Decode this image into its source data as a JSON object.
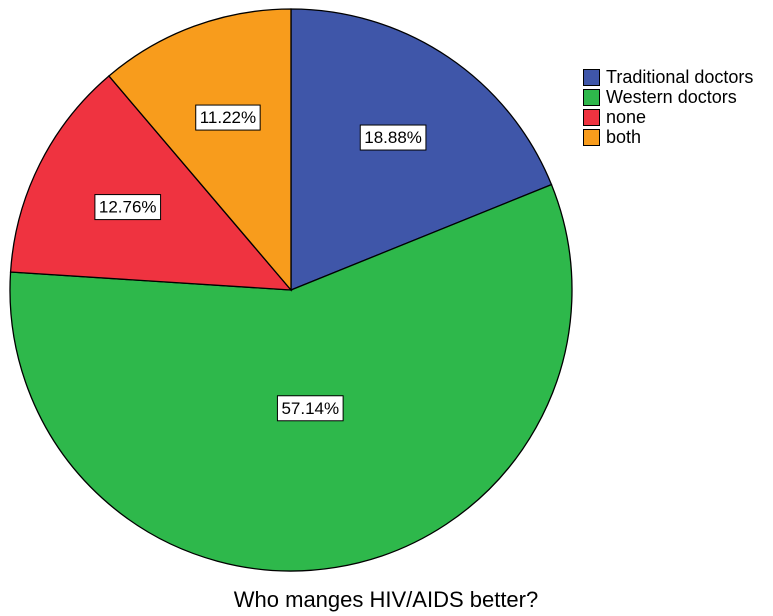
{
  "chart_data": {
    "type": "pie",
    "title": "Who manges HIV/AIDS better?",
    "categories": [
      "Traditional doctors",
      "Western doctors",
      "none",
      "both"
    ],
    "values": [
      18.88,
      57.14,
      12.76,
      11.22
    ],
    "value_labels": [
      "18.88%",
      "57.14%",
      "12.76%",
      "11.22%"
    ],
    "colors": [
      "#3f56a9",
      "#2eb84b",
      "#ef3340",
      "#f89c1c"
    ],
    "legend": "right"
  }
}
